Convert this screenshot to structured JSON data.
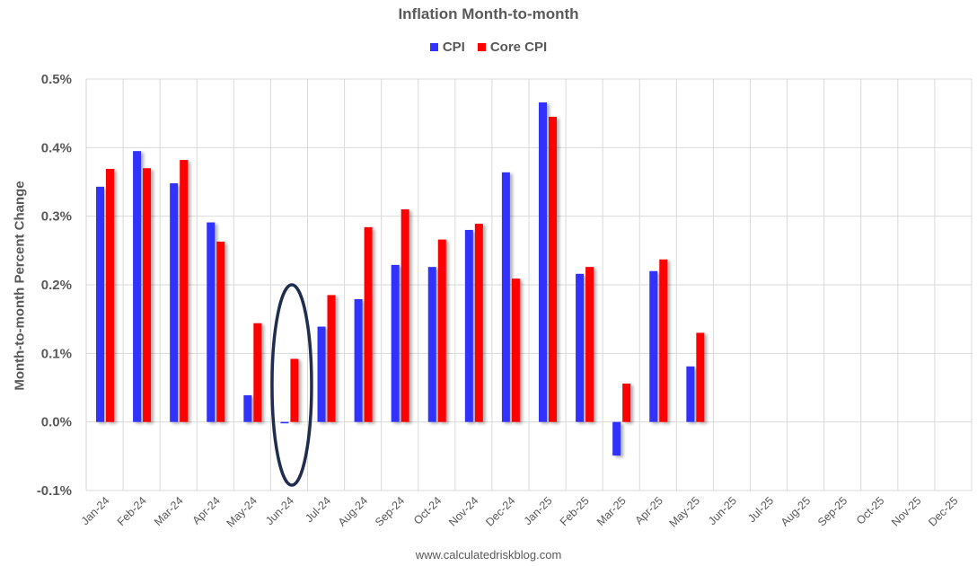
{
  "chart_data": {
    "type": "bar",
    "title": "Inflation Month-to-month",
    "xlabel": "",
    "ylabel": "Month-to-month Percent Change",
    "ylim": [
      -0.1,
      0.5
    ],
    "yticks": [
      "0.5%",
      "0.4%",
      "0.3%",
      "0.2%",
      "0.1%",
      "0.0%",
      "-0.1%"
    ],
    "ytick_values": [
      0.5,
      0.4,
      0.3,
      0.2,
      0.1,
      0.0,
      -0.1
    ],
    "grid": true,
    "legend_position": "top",
    "categories": [
      "Jan-24",
      "Feb-24",
      "Mar-24",
      "Apr-24",
      "May-24",
      "Jun-24",
      "Jul-24",
      "Aug-24",
      "Sep-24",
      "Oct-24",
      "Nov-24",
      "Dec-24",
      "Jan-25",
      "Feb-25",
      "Mar-25",
      "Apr-25",
      "May-25",
      "Jun-25",
      "Jul-25",
      "Aug-25",
      "Sep-25",
      "Oct-25",
      "Nov-25",
      "Dec-25"
    ],
    "series": [
      {
        "name": "CPI",
        "color": "#3333FF",
        "values": [
          0.343,
          0.395,
          0.348,
          0.291,
          0.039,
          -0.002,
          0.139,
          0.179,
          0.229,
          0.226,
          0.28,
          0.364,
          0.466,
          0.216,
          -0.049,
          0.22,
          0.081,
          null,
          null,
          null,
          null,
          null,
          null,
          null
        ]
      },
      {
        "name": "Core CPI",
        "color": "#FF0000",
        "values": [
          0.369,
          0.37,
          0.382,
          0.263,
          0.144,
          0.092,
          0.185,
          0.284,
          0.31,
          0.266,
          0.289,
          0.209,
          0.445,
          0.226,
          0.056,
          0.237,
          0.13,
          null,
          null,
          null,
          null,
          null,
          null,
          null
        ]
      }
    ],
    "annotations": [
      {
        "type": "ellipse",
        "around": "Jun-24",
        "color": "#1F2D4E"
      }
    ],
    "source": "www.calculatedriskblog.com"
  },
  "legend": {
    "items": [
      {
        "label": "CPI",
        "color": "#3333FF"
      },
      {
        "label": "Core CPI",
        "color": "#FF0000"
      }
    ]
  },
  "footer": {
    "text": "www.calculatedriskblog.com"
  }
}
